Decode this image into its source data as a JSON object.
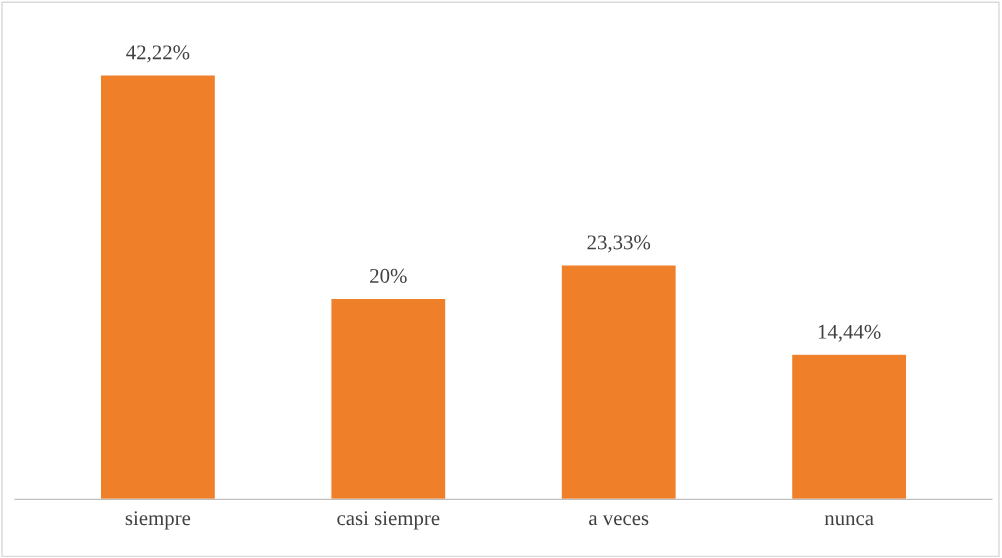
{
  "chart_data": {
    "type": "bar",
    "categories": [
      "siempre",
      "casi siempre",
      "a veces",
      "nunca"
    ],
    "values": [
      42.22,
      20,
      23.33,
      14.44
    ],
    "value_labels": [
      "42,22%",
      "20%",
      "23,33%",
      "14,44%"
    ],
    "color": "#f07f2a",
    "grid": false,
    "legend": false
  }
}
